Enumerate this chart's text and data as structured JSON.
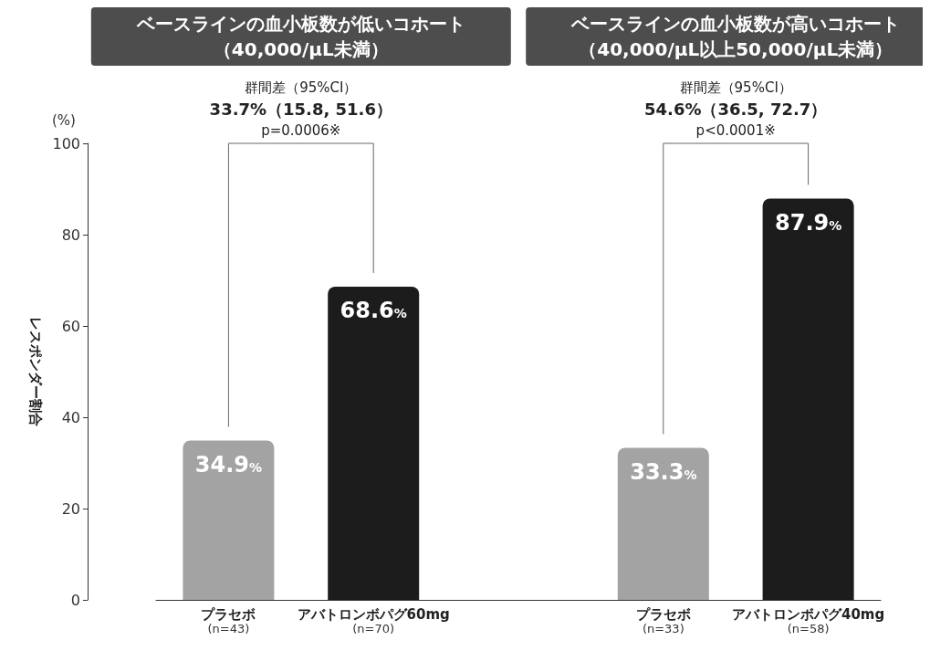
{
  "chart_data": {
    "type": "bar",
    "ylabel": "レスポンダー割合",
    "categories": [
      "プラセボ\n(n=43)",
      "アバトロンボパグ60mg\n(n=70)",
      null,
      "プラセボ\n(n=33)",
      "アバトロンボパグ40mg\n(n=58)"
    ],
    "values": [
      34.9,
      68.6,
      null,
      33.3,
      87.9
    ],
    "colors": [
      "#a3a3a3",
      "#1c1c1c",
      null,
      "#a3a3a3",
      "#1c1c1c"
    ],
    "value_labels": [
      "34.9%",
      "68.6%",
      null,
      "33.3%",
      "87.9%"
    ],
    "ylim": [
      0,
      100
    ],
    "yticks": [
      0,
      20,
      40,
      60,
      80,
      100
    ],
    "grid": false,
    "annotations": [
      "ベースラインの血小板数が低いコホート",
      "（40,000/μL未満）",
      "ベースラインの血小板数が高いコホート",
      "（40,000/μL以上50,000/μL未満）",
      "群間差（95%CI）",
      "33.7%（15.8, 51.6）",
      "p=0.0006※",
      "群間差（95%CI）",
      "54.6%（36.5, 72.7）",
      "p<0.0001※",
      "(%)"
    ]
  }
}
